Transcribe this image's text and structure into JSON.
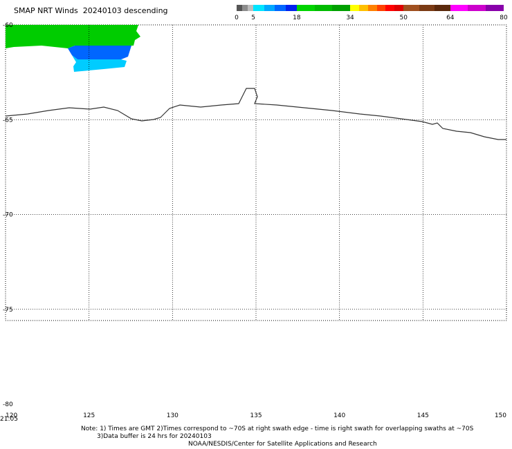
{
  "header": {
    "title": "SMAP NRT Winds  20240103 descending"
  },
  "colorbar": {
    "labels": [
      "0",
      "5",
      "18",
      "34",
      "50",
      "64",
      "80"
    ],
    "segments": [
      {
        "from": 0,
        "to": 5,
        "colors": [
          "#555555",
          "#8c8c8c",
          "#bdbdbd"
        ]
      },
      {
        "from": 5,
        "to": 18,
        "colors": [
          "#00e5ff",
          "#00a8ff",
          "#0066ff",
          "#0022ee"
        ]
      },
      {
        "from": 18,
        "to": 34,
        "colors": [
          "#00d400",
          "#00bb00",
          "#00a000"
        ]
      },
      {
        "from": 34,
        "to": 50,
        "colors": [
          "#ffff00",
          "#ffc000",
          "#ff8000",
          "#ff4000",
          "#ff0000",
          "#dd0000"
        ]
      },
      {
        "from": 50,
        "to": 64,
        "colors": [
          "#a05020",
          "#7a3a14",
          "#5a280c"
        ]
      },
      {
        "from": 64,
        "to": 80,
        "colors": [
          "#ff00ff",
          "#cc00cc",
          "#8800aa"
        ]
      }
    ]
  },
  "map": {
    "lon_ticks": [
      "120",
      "125",
      "130",
      "135",
      "140",
      "145",
      "150"
    ],
    "lat_ticks": [
      "-60",
      "-65",
      "-70",
      "-75",
      "-80"
    ],
    "time_label": "21:05",
    "colors": {
      "grid": "#000000",
      "coast": "#333333",
      "green": "#00cc00",
      "blue": "#0066ff",
      "cyan": "#00ccff"
    }
  },
  "footer": {
    "note_line1": "Note: 1) Times are GMT 2)Times correspond to ~70S at right swath edge - time is right swath for overlapping swaths at ~70S",
    "note_line2": "3)Data buffer is 24 hrs for 20240103",
    "credit": "NOAA/NESDIS/Center for Satellite Applications and Research"
  }
}
